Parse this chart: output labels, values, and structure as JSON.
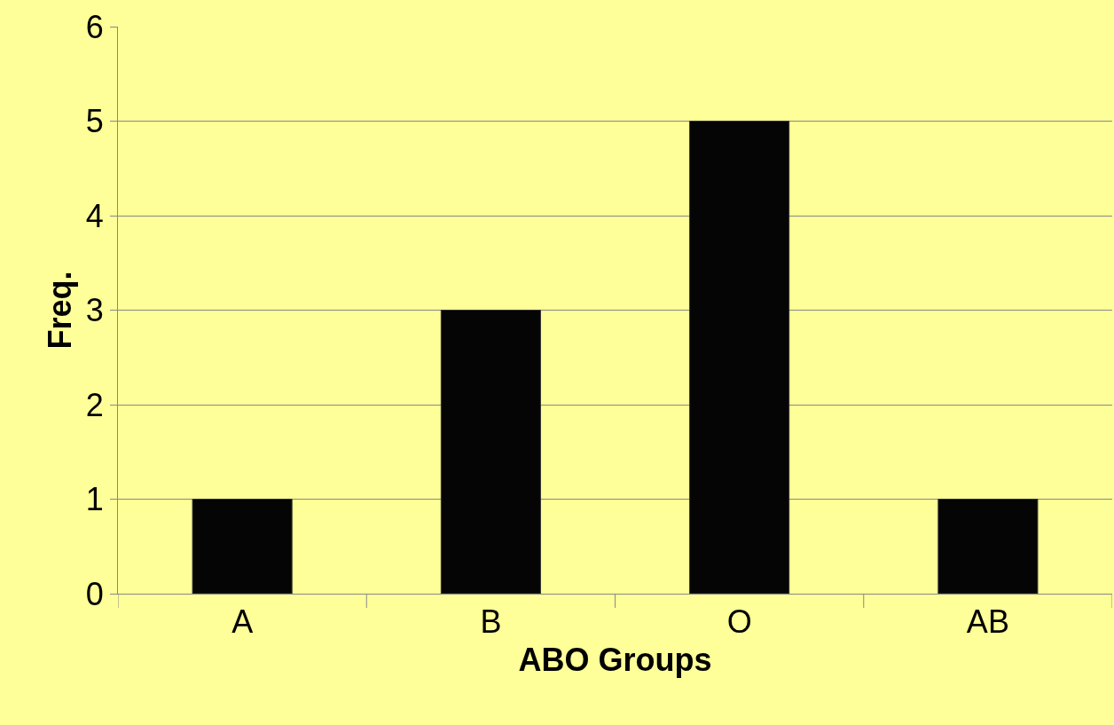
{
  "chart_data": {
    "type": "bar",
    "xlabel": "ABO Groups",
    "ylabel": "Freq.",
    "categories": [
      "A",
      "B",
      "O",
      "AB"
    ],
    "values": [
      1,
      3,
      5,
      1
    ],
    "color": "#050505",
    "ylim": [
      0,
      6
    ],
    "yticks": [
      0,
      1,
      2,
      3,
      4,
      5,
      6
    ],
    "grid": "y"
  }
}
